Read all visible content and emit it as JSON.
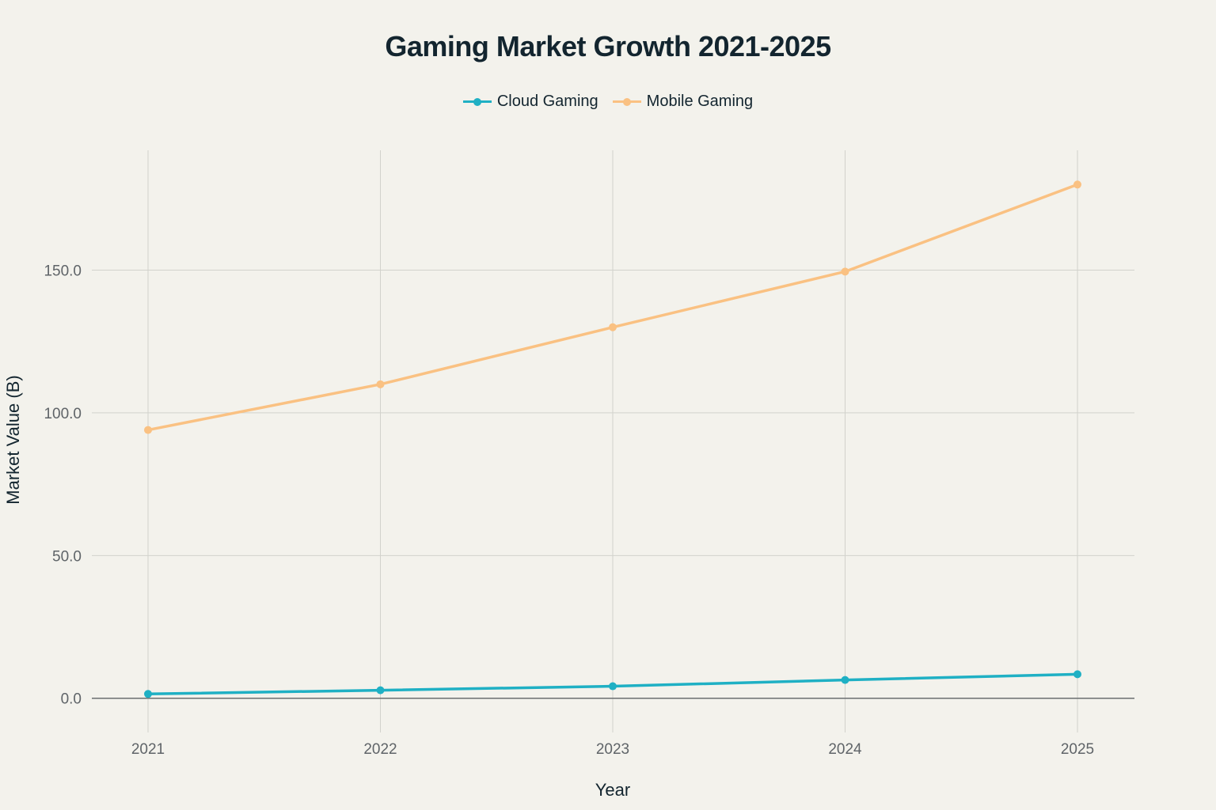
{
  "chart_data": {
    "type": "line",
    "title": "Gaming Market Growth 2021-2025",
    "xlabel": "Year",
    "ylabel": "Market Value (B)",
    "x": [
      "2021",
      "2022",
      "2023",
      "2024",
      "2025"
    ],
    "yticks": [
      "0.0",
      "50.0",
      "100.0",
      "150.0"
    ],
    "ylim": [
      -12,
      192
    ],
    "grid": true,
    "legend_position": "top-center",
    "series": [
      {
        "name": "Cloud Gaming",
        "color": "#1fb0c4",
        "values": [
          1.5,
          2.8,
          4.2,
          6.4,
          8.4
        ]
      },
      {
        "name": "Mobile Gaming",
        "color": "#fac182",
        "values": [
          94,
          110,
          130,
          149.5,
          180
        ]
      }
    ]
  }
}
